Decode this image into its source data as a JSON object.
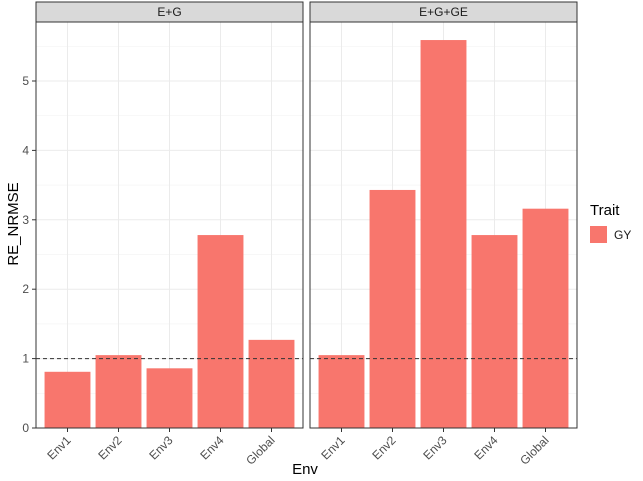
{
  "chart_data": {
    "type": "bar",
    "ylabel": "RE_NRMSE",
    "xlabel": "Env",
    "ylim": [
      0,
      5.85
    ],
    "yticks": [
      0,
      1,
      2,
      3,
      4,
      5
    ],
    "reference_line": 1,
    "grid": true,
    "legend": {
      "title": "Trait",
      "placement": "right",
      "entries": [
        {
          "label": "GY",
          "color": "#F8766D"
        }
      ]
    },
    "panels": [
      {
        "strip": "E+G",
        "categories": [
          "Env1",
          "Env2",
          "Env3",
          "Env4",
          "Global"
        ],
        "series": [
          {
            "name": "GY",
            "values": [
              0.81,
              1.05,
              0.86,
              2.78,
              1.27
            ]
          }
        ]
      },
      {
        "strip": "E+G+GE",
        "categories": [
          "Env1",
          "Env2",
          "Env3",
          "Env4",
          "Global"
        ],
        "series": [
          {
            "name": "GY",
            "values": [
              1.05,
              3.43,
              5.59,
              2.78,
              3.16
            ]
          }
        ]
      }
    ]
  },
  "colors": {
    "bar": "#F8766D",
    "strip_bg": "#D9D9D9",
    "grid": "#EBEBEB",
    "panel_border": "#333333"
  }
}
